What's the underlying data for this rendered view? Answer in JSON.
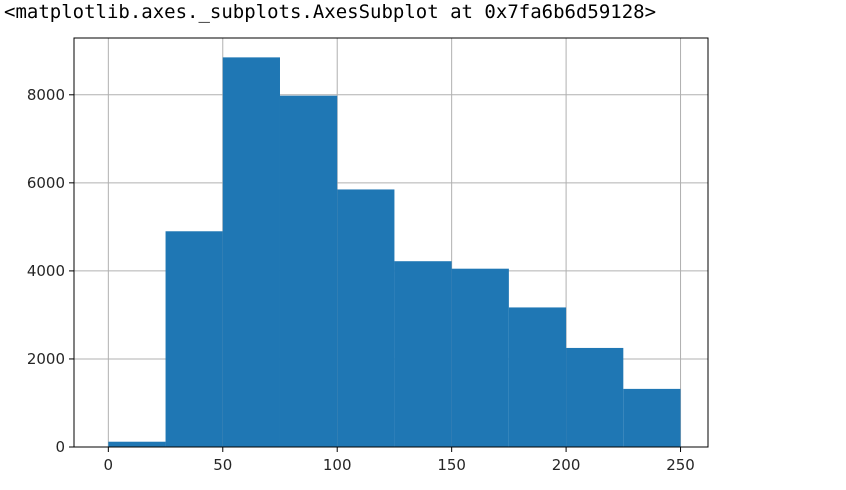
{
  "output_text": "<matplotlib.axes._subplots.AxesSubplot at 0x7fa6b6d59128>",
  "chart_data": {
    "type": "bar",
    "histogram": true,
    "bin_edges": [
      0,
      25,
      50,
      75,
      100,
      125,
      150,
      175,
      200,
      225,
      250
    ],
    "values": [
      120,
      4900,
      8850,
      7980,
      5850,
      4220,
      4050,
      3170,
      2250,
      1320
    ],
    "xticks": [
      0,
      50,
      100,
      150,
      200,
      250
    ],
    "yticks": [
      0,
      2000,
      4000,
      6000,
      8000
    ],
    "xtick_labels": [
      "0",
      "50",
      "100",
      "150",
      "200",
      "250"
    ],
    "ytick_labels": [
      "0",
      "2000",
      "4000",
      "6000",
      "8000"
    ],
    "xlim": [
      -15,
      262
    ],
    "ylim": [
      0,
      9290
    ],
    "grid": true,
    "title": "",
    "xlabel": "",
    "ylabel": "",
    "bar_color": "#1f77b4",
    "grid_color": "#b0b0b0"
  }
}
